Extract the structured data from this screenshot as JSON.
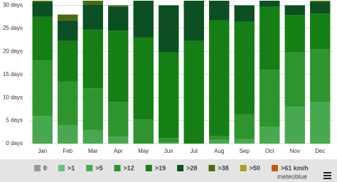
{
  "chart_data": {
    "type": "stacked-bar",
    "categories": [
      "Jan",
      "Feb",
      "Mar",
      "Apr",
      "May",
      "Jun",
      "Jul",
      "Aug",
      "Sep",
      "Oct",
      "Nov",
      "Dec"
    ],
    "series": [
      {
        "name": "0",
        "color": "#9a9a9a",
        "values": [
          0,
          0,
          0,
          0,
          0,
          0,
          0,
          0,
          0,
          0,
          0,
          0
        ]
      },
      {
        "name": ">1",
        "color": "#6cc07a",
        "values": [
          0,
          0,
          0,
          0,
          0,
          0,
          0,
          0,
          0,
          0,
          0,
          0
        ]
      },
      {
        "name": ">5",
        "color": "#48a850",
        "values": [
          6,
          4,
          3,
          1.5,
          0,
          0.2,
          0,
          0.8,
          1,
          3.7,
          8,
          9
        ]
      },
      {
        "name": ">12",
        "color": "#2e942e",
        "values": [
          12,
          9.5,
          9,
          7.5,
          5.2,
          1,
          0,
          0.9,
          5.4,
          12.3,
          11.9,
          11.5
        ]
      },
      {
        "name": ">19",
        "color": "#157f15",
        "values": [
          9.5,
          8.8,
          12.7,
          15.5,
          17.8,
          18.6,
          22.3,
          25,
          20,
          13.7,
          8,
          7.7
        ]
      },
      {
        "name": ">28",
        "color": "#0c4f22",
        "values": [
          3.2,
          4.4,
          5.5,
          5.2,
          8,
          10.2,
          8.7,
          4.3,
          3.6,
          1.3,
          2.1,
          2.5
        ]
      },
      {
        "name": ">38",
        "color": "#4d6a12",
        "values": [
          0.3,
          1.3,
          0.8,
          0.3,
          0,
          0,
          0,
          0,
          0,
          0,
          0,
          0.3
        ]
      },
      {
        "name": ">50",
        "color": "#a8a020",
        "values": [
          0,
          0,
          0,
          0,
          0,
          0,
          0,
          0,
          0,
          0,
          0,
          0
        ]
      },
      {
        "name": ">61 km/h",
        "color": "#c05a14",
        "values": [
          0,
          0,
          0,
          0,
          0,
          0,
          0,
          0,
          0,
          0,
          0,
          0
        ]
      }
    ],
    "ylim": [
      0,
      31
    ],
    "yticks": [
      {
        "value": 0,
        "label": "0 days"
      },
      {
        "value": 5,
        "label": "5 days"
      },
      {
        "value": 10,
        "label": "10 days"
      },
      {
        "value": 15,
        "label": "15 days"
      },
      {
        "value": 20,
        "label": "20 days"
      },
      {
        "value": 25,
        "label": "25 days"
      },
      {
        "value": 30,
        "label": "30 days"
      }
    ],
    "grid": true,
    "credit": "meteoblue"
  }
}
